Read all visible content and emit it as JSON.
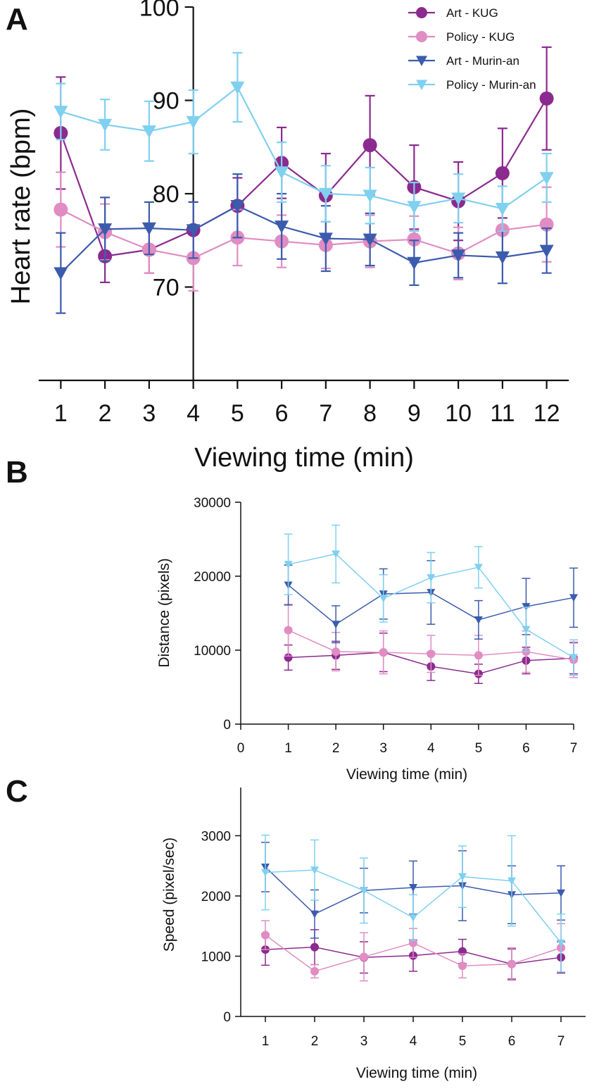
{
  "legend": [
    {
      "name": "Art - KUG",
      "color": "#8b2a8f",
      "marker": "circle"
    },
    {
      "name": "Policy - KUG",
      "color": "#e18cc3",
      "marker": "circle"
    },
    {
      "name": "Art - Murin-an",
      "color": "#3b5bad",
      "marker": "triangle-down"
    },
    {
      "name": "Policy - Murin-an",
      "color": "#80d0f0",
      "marker": "triangle-down"
    }
  ],
  "chart_data": [
    {
      "panel": "A",
      "type": "line",
      "xlabel": "Viewing time (min)",
      "ylabel": "Heart rate (bpm)",
      "x": [
        1,
        2,
        3,
        4,
        5,
        6,
        7,
        8,
        9,
        10,
        11,
        12
      ],
      "xlim": [
        0.5,
        12.5
      ],
      "ylim": [
        60,
        100
      ],
      "yticks": [
        70,
        80,
        90,
        100
      ],
      "legend_position": "top-right",
      "series": [
        {
          "name": "Art - KUG",
          "values": [
            86.5,
            73.3,
            74,
            76.1,
            78.7,
            83.3,
            79.8,
            85.2,
            80.7,
            79.2,
            82.2,
            90.2
          ],
          "errors": [
            6,
            2.8,
            2.5,
            3,
            3,
            3.8,
            4.5,
            5.3,
            4.5,
            4.2,
            4.8,
            5.5
          ]
        },
        {
          "name": "Policy - KUG",
          "values": [
            78.3,
            75.9,
            74,
            73.1,
            75.3,
            74.9,
            74.5,
            74.9,
            75.1,
            73.6,
            76.1,
            76.7
          ],
          "errors": [
            4,
            3,
            2.5,
            3.5,
            3,
            2.8,
            2.5,
            2.8,
            2.5,
            2.8,
            2.5,
            4
          ]
        },
        {
          "name": "Art - Murin-an",
          "values": [
            71.5,
            76.2,
            76.3,
            76.1,
            78.7,
            76.5,
            75.2,
            75.1,
            72.6,
            73.4,
            73.2,
            73.9
          ],
          "errors": [
            4.3,
            3.4,
            2.8,
            3,
            3.4,
            3.5,
            3.5,
            2.8,
            2.4,
            2.4,
            2.8,
            2.4
          ]
        },
        {
          "name": "Policy - Murin-an",
          "values": [
            88.8,
            87.4,
            86.7,
            87.7,
            91.4,
            82.3,
            80,
            79.8,
            78.6,
            79.5,
            78.4,
            81.7
          ],
          "errors": [
            3,
            2.7,
            3.2,
            3.4,
            3.7,
            3.2,
            3,
            3,
            2.6,
            2.6,
            2.4,
            2.6
          ]
        }
      ]
    },
    {
      "panel": "B",
      "type": "line",
      "xlabel": "Viewing time (min)",
      "ylabel": "Distance (pixels)",
      "x": [
        1,
        2,
        3,
        4,
        5,
        6,
        7
      ],
      "xlim": [
        0,
        7
      ],
      "xticks": [
        0,
        1,
        2,
        3,
        4,
        5,
        6,
        7
      ],
      "ylim": [
        0,
        30000
      ],
      "yticks": [
        0,
        10000,
        20000,
        30000
      ],
      "series": [
        {
          "name": "Art - KUG",
          "values": [
            9000,
            9300,
            9700,
            7800,
            6800,
            8600,
            8900
          ],
          "errors": [
            1700,
            1900,
            2600,
            1900,
            1300,
            1800,
            2100
          ]
        },
        {
          "name": "Policy - KUG",
          "values": [
            12700,
            9800,
            9700,
            9500,
            9300,
            9800,
            8700
          ],
          "errors": [
            3500,
            2600,
            2900,
            2500,
            2700,
            2800,
            2400
          ]
        },
        {
          "name": "Art - Murin-an",
          "values": [
            18800,
            13500,
            17600,
            17800,
            14100,
            15900,
            17100
          ],
          "errors": [
            2700,
            2500,
            3400,
            4300,
            2600,
            3800,
            4000
          ]
        },
        {
          "name": "Policy - Murin-an",
          "values": [
            21600,
            23000,
            17000,
            19800,
            21200,
            12800,
            9000
          ],
          "errors": [
            4100,
            3900,
            3200,
            3400,
            2800,
            3000,
            2400
          ]
        }
      ]
    },
    {
      "panel": "C",
      "type": "line",
      "xlabel": "Viewing time (min)",
      "ylabel": "Speed (pixel/sec)",
      "x": [
        1,
        2,
        3,
        4,
        5,
        6,
        7
      ],
      "xlim": [
        0.5,
        7.5
      ],
      "xticks": [
        1,
        2,
        3,
        4,
        5,
        6,
        7
      ],
      "ylim": [
        0,
        3800
      ],
      "yticks": [
        0,
        1000,
        2000,
        3000
      ],
      "series": [
        {
          "name": "Art - KUG",
          "values": [
            1110,
            1150,
            980,
            1010,
            1080,
            870,
            980
          ],
          "errors": [
            260,
            290,
            260,
            260,
            200,
            250,
            260
          ]
        },
        {
          "name": "Policy - KUG",
          "values": [
            1350,
            750,
            990,
            1220,
            840,
            870,
            1140
          ],
          "errors": [
            240,
            110,
            400,
            240,
            200,
            270,
            400
          ]
        },
        {
          "name": "Art - Murin-an",
          "values": [
            2480,
            1700,
            2090,
            2140,
            2170,
            2020,
            2050
          ],
          "errors": [
            410,
            400,
            370,
            440,
            580,
            480,
            450
          ]
        },
        {
          "name": "Policy - Murin-an",
          "values": [
            2390,
            2430,
            2090,
            1640,
            2320,
            2250,
            1220
          ],
          "errors": [
            620,
            500,
            540,
            380,
            510,
            750,
            480
          ]
        }
      ]
    }
  ],
  "panels": [
    {
      "label": "A"
    },
    {
      "label": "B"
    },
    {
      "label": "C"
    }
  ]
}
